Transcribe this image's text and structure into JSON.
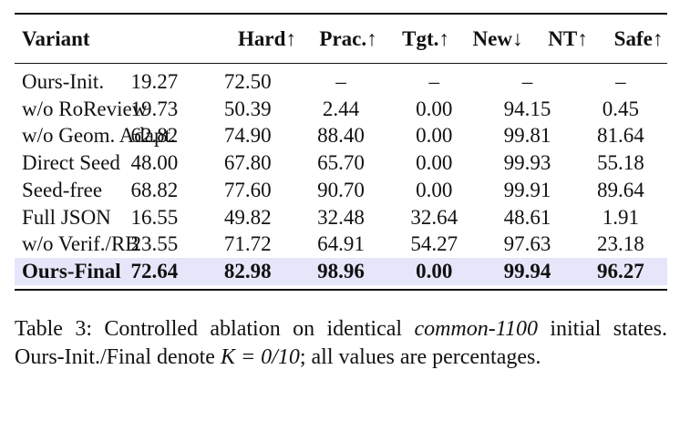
{
  "table": {
    "headers": [
      "Variant",
      "Hard↑",
      "Prac.↑",
      "Tgt.↑",
      "New↓",
      "NT↑",
      "Safe↑"
    ],
    "rows": [
      [
        "Ours-Init.",
        "19.27",
        "72.50",
        "–",
        "–",
        "–",
        "–"
      ],
      [
        "w/o RoReview",
        "19.73",
        "50.39",
        "2.44",
        "0.00",
        "94.15",
        "0.45"
      ],
      [
        "w/o Geom. Adapt.",
        "62.82",
        "74.90",
        "88.40",
        "0.00",
        "99.81",
        "81.64"
      ],
      [
        "Direct Seed",
        "48.00",
        "67.80",
        "65.70",
        "0.00",
        "99.93",
        "55.18"
      ],
      [
        "Seed-free",
        "68.82",
        "77.60",
        "90.70",
        "0.00",
        "99.91",
        "89.64"
      ],
      [
        "Full JSON",
        "16.55",
        "49.82",
        "32.48",
        "32.64",
        "48.61",
        "1.91"
      ],
      [
        "w/o Verif./RB",
        "23.55",
        "71.72",
        "64.91",
        "54.27",
        "97.63",
        "23.18"
      ]
    ],
    "final_row": [
      "Ours-Final",
      "72.64",
      "82.98",
      "98.96",
      "0.00",
      "99.94",
      "96.27"
    ]
  },
  "caption": {
    "label": "Table 3:",
    "text_before_italic": "Controlled ablation on identical ",
    "italic": "common-1100",
    "text_after_italic": " initial states. Ours-Init./Final denote ",
    "math": "K = 0/10",
    "text_end": "; all values are percentages."
  },
  "colors": {
    "highlight_row": "#e6e6fa",
    "rules": "#111111"
  }
}
